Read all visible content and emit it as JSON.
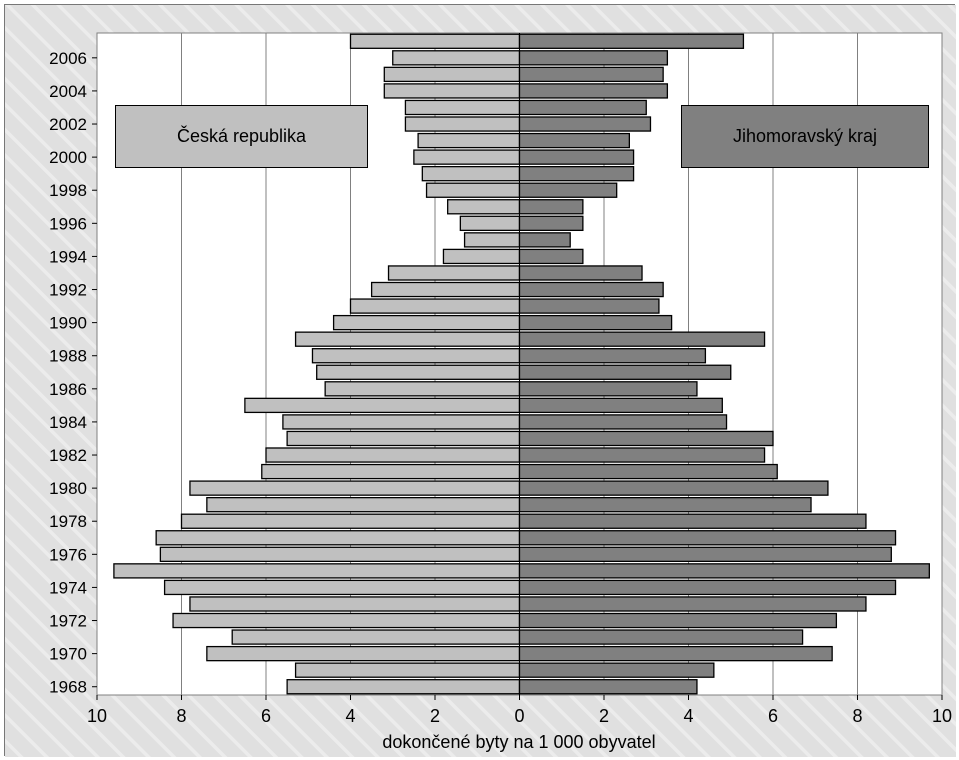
{
  "chart_data": {
    "type": "bar",
    "orientation": "horizontal-mirrored",
    "xlabel": "dokončené byty na 1 000 obyvatel",
    "xlim": [
      -10,
      10
    ],
    "x_ticks": [
      10,
      8,
      6,
      4,
      2,
      0,
      2,
      4,
      6,
      8,
      10
    ],
    "y_ticks": [
      "1968",
      "1970",
      "1972",
      "1974",
      "1976",
      "1978",
      "1980",
      "1982",
      "1984",
      "1986",
      "1988",
      "1990",
      "1992",
      "1994",
      "1996",
      "1998",
      "2000",
      "2002",
      "2004",
      "2006"
    ],
    "grid": "vertical",
    "categories": [
      1968,
      1969,
      1970,
      1971,
      1972,
      1973,
      1974,
      1975,
      1976,
      1977,
      1978,
      1979,
      1980,
      1981,
      1982,
      1983,
      1984,
      1985,
      1986,
      1987,
      1988,
      1989,
      1990,
      1991,
      1992,
      1993,
      1994,
      1995,
      1996,
      1997,
      1998,
      1999,
      2000,
      2001,
      2002,
      2003,
      2004,
      2005,
      2006,
      2007
    ],
    "series": [
      {
        "name": "Česká republika",
        "side": "left",
        "color": "#c0c0c0",
        "values": [
          5.5,
          5.3,
          7.4,
          6.8,
          8.2,
          7.8,
          8.4,
          9.6,
          8.5,
          8.6,
          8.0,
          7.4,
          7.8,
          6.1,
          6.0,
          5.5,
          5.6,
          6.5,
          4.6,
          4.8,
          4.9,
          5.3,
          4.4,
          4.0,
          3.5,
          3.1,
          1.8,
          1.3,
          1.4,
          1.7,
          2.2,
          2.3,
          2.5,
          2.4,
          2.7,
          2.7,
          3.2,
          3.2,
          3.0,
          4.0
        ]
      },
      {
        "name": "Jihomoravský kraj",
        "side": "right",
        "color": "#808080",
        "values": [
          4.2,
          4.6,
          7.4,
          6.7,
          7.5,
          8.2,
          8.9,
          9.7,
          8.8,
          8.9,
          8.2,
          6.9,
          7.3,
          6.1,
          5.8,
          6.0,
          4.9,
          4.8,
          4.2,
          5.0,
          4.4,
          5.8,
          3.6,
          3.3,
          3.4,
          2.9,
          1.5,
          1.2,
          1.5,
          1.5,
          2.3,
          2.7,
          2.7,
          2.6,
          3.1,
          3.0,
          3.5,
          3.4,
          3.5,
          5.3
        ]
      }
    ]
  }
}
